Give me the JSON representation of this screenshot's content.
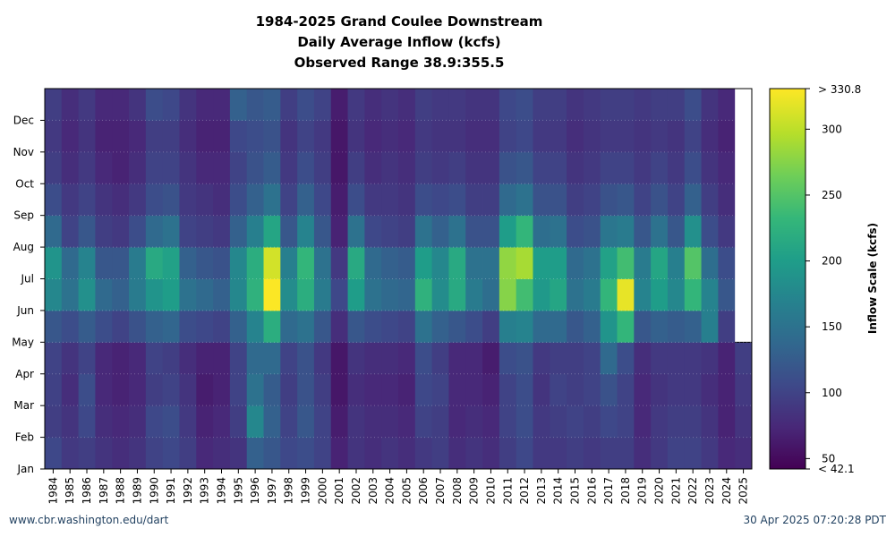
{
  "chart_data": {
    "type": "heatmap",
    "title": [
      "1984-2025 Grand Coulee Downstream",
      "Daily Average Inflow (kcfs)",
      "Observed Range 38.9:355.5"
    ],
    "x": {
      "categories": [
        "1984",
        "1985",
        "1986",
        "1987",
        "1988",
        "1989",
        "1990",
        "1991",
        "1992",
        "1993",
        "1994",
        "1995",
        "1996",
        "1997",
        "1998",
        "1999",
        "2000",
        "2001",
        "2002",
        "2003",
        "2004",
        "2005",
        "2006",
        "2007",
        "2008",
        "2009",
        "2010",
        "2011",
        "2012",
        "2013",
        "2014",
        "2015",
        "2016",
        "2017",
        "2018",
        "2019",
        "2020",
        "2021",
        "2022",
        "2023",
        "2024",
        "2025"
      ]
    },
    "y": {
      "ticks": [
        "Jan",
        "Feb",
        "Mar",
        "Apr",
        "May",
        "Jun",
        "Jul",
        "Aug",
        "Sep",
        "Oct",
        "Nov",
        "Dec"
      ]
    },
    "colorbar": {
      "label": "Inflow Scale (kcfs)",
      "range": [
        42.1,
        330.8
      ],
      "ticks": [
        50,
        100,
        150,
        200,
        250,
        300
      ],
      "max_label": "> 330.8",
      "min_label": "< 42.1",
      "colormap": "viridis"
    },
    "grid": true,
    "no_data_after": "2025-04-30",
    "series": [
      {
        "year": "1984",
        "values": [
          105,
          95,
          98,
          100,
          120,
          175,
          190,
          140,
          110,
          95,
          90,
          95
        ]
      },
      {
        "year": "1985",
        "values": [
          90,
          85,
          80,
          85,
          110,
          150,
          140,
          100,
          90,
          80,
          75,
          80
        ]
      },
      {
        "year": "1986",
        "values": [
          95,
          105,
          110,
          100,
          125,
          185,
          170,
          120,
          100,
          90,
          85,
          90
        ]
      },
      {
        "year": "1987",
        "values": [
          85,
          80,
          75,
          75,
          110,
          140,
          120,
          95,
          85,
          75,
          70,
          75
        ]
      },
      {
        "year": "1988",
        "values": [
          80,
          75,
          70,
          70,
          100,
          130,
          120,
          90,
          80,
          70,
          70,
          75
        ]
      },
      {
        "year": "1989",
        "values": [
          85,
          80,
          75,
          75,
          115,
          160,
          160,
          110,
          90,
          80,
          75,
          85
        ]
      },
      {
        "year": "1990",
        "values": [
          100,
          105,
          95,
          100,
          130,
          190,
          215,
          140,
          110,
          100,
          95,
          110
        ]
      },
      {
        "year": "1991",
        "values": [
          105,
          110,
          100,
          95,
          135,
          200,
          205,
          150,
          115,
          100,
          95,
          105
        ]
      },
      {
        "year": "1992",
        "values": [
          95,
          90,
          85,
          80,
          110,
          150,
          130,
          100,
          90,
          85,
          80,
          85
        ]
      },
      {
        "year": "1993",
        "values": [
          75,
          70,
          65,
          70,
          105,
          140,
          120,
          95,
          85,
          75,
          70,
          75
        ]
      },
      {
        "year": "1994",
        "values": [
          80,
          75,
          70,
          70,
          100,
          130,
          115,
          90,
          80,
          75,
          70,
          75
        ]
      },
      {
        "year": "1995",
        "values": [
          85,
          95,
          100,
          100,
          130,
          175,
          175,
          130,
          110,
          100,
          105,
          130
        ]
      },
      {
        "year": "1996",
        "values": [
          130,
          175,
          150,
          140,
          170,
          225,
          220,
          165,
          130,
          115,
          110,
          120
        ]
      },
      {
        "year": "1997",
        "values": [
          120,
          130,
          125,
          140,
          220,
          330,
          310,
          210,
          150,
          125,
          115,
          125
        ]
      },
      {
        "year": "1998",
        "values": [
          105,
          100,
          95,
          100,
          140,
          180,
          165,
          120,
          100,
          90,
          85,
          95
        ]
      },
      {
        "year": "1999",
        "values": [
          110,
          120,
          115,
          115,
          150,
          220,
          230,
          170,
          130,
          110,
          100,
          110
        ]
      },
      {
        "year": "2000",
        "values": [
          100,
          100,
          95,
          90,
          120,
          160,
          150,
          120,
          105,
          95,
          90,
          100
        ]
      },
      {
        "year": "2001",
        "values": [
          70,
          65,
          60,
          60,
          80,
          105,
          90,
          70,
          65,
          60,
          60,
          65
        ]
      },
      {
        "year": "2002",
        "values": [
          85,
          85,
          80,
          85,
          120,
          200,
          215,
          150,
          110,
          95,
          85,
          90
        ]
      },
      {
        "year": "2003",
        "values": [
          80,
          80,
          75,
          80,
          110,
          150,
          140,
          105,
          90,
          80,
          75,
          80
        ]
      },
      {
        "year": "2004",
        "values": [
          85,
          80,
          75,
          80,
          105,
          140,
          130,
          100,
          90,
          85,
          80,
          85
        ]
      },
      {
        "year": "2005",
        "values": [
          80,
          75,
          70,
          75,
          100,
          135,
          125,
          95,
          85,
          80,
          75,
          80
        ]
      },
      {
        "year": "2006",
        "values": [
          90,
          100,
          105,
          110,
          150,
          225,
          200,
          150,
          110,
          95,
          90,
          95
        ]
      },
      {
        "year": "2007",
        "values": [
          95,
          95,
          100,
          95,
          130,
          180,
          175,
          130,
          105,
          90,
          85,
          90
        ]
      },
      {
        "year": "2008",
        "values": [
          80,
          75,
          75,
          75,
          120,
          215,
          215,
          150,
          110,
          95,
          85,
          90
        ]
      },
      {
        "year": "2009",
        "values": [
          85,
          80,
          75,
          75,
          110,
          160,
          150,
          115,
          95,
          85,
          80,
          85
        ]
      },
      {
        "year": "2010",
        "values": [
          80,
          75,
          70,
          65,
          95,
          145,
          150,
          115,
          95,
          85,
          80,
          85
        ]
      },
      {
        "year": "2011",
        "values": [
          95,
          100,
          100,
          110,
          165,
          275,
          280,
          200,
          140,
          115,
          100,
          105
        ]
      },
      {
        "year": "2012",
        "values": [
          105,
          110,
          110,
          115,
          170,
          240,
          290,
          230,
          150,
          120,
          105,
          110
        ]
      },
      {
        "year": "2013",
        "values": [
          90,
          90,
          85,
          90,
          140,
          195,
          200,
          145,
          115,
          100,
          90,
          95
        ]
      },
      {
        "year": "2014",
        "values": [
          90,
          95,
          100,
          95,
          140,
          210,
          200,
          150,
          115,
          100,
          90,
          95
        ]
      },
      {
        "year": "2015",
        "values": [
          95,
          100,
          95,
          95,
          120,
          150,
          140,
          110,
          95,
          85,
          80,
          85
        ]
      },
      {
        "year": "2016",
        "values": [
          90,
          95,
          100,
          100,
          130,
          160,
          150,
          115,
          100,
          90,
          85,
          90
        ]
      },
      {
        "year": "2017",
        "values": [
          95,
          105,
          115,
          140,
          190,
          230,
          205,
          155,
          115,
          100,
          90,
          95
        ]
      },
      {
        "year": "2018",
        "values": [
          95,
          100,
          100,
          110,
          230,
          320,
          240,
          160,
          120,
          100,
          90,
          95
        ]
      },
      {
        "year": "2019",
        "values": [
          80,
          75,
          75,
          80,
          120,
          170,
          160,
          120,
          100,
          90,
          85,
          90
        ]
      },
      {
        "year": "2020",
        "values": [
          90,
          90,
          85,
          90,
          130,
          200,
          210,
          150,
          115,
          100,
          90,
          95
        ]
      },
      {
        "year": "2021",
        "values": [
          100,
          95,
          90,
          90,
          125,
          175,
          165,
          120,
          100,
          90,
          85,
          95
        ]
      },
      {
        "year": "2022",
        "values": [
          100,
          95,
          90,
          90,
          130,
          230,
          250,
          185,
          130,
          110,
          100,
          110
        ]
      },
      {
        "year": "2023",
        "values": [
          90,
          85,
          80,
          85,
          165,
          170,
          145,
          110,
          95,
          85,
          80,
          85
        ]
      },
      {
        "year": "2024",
        "values": [
          75,
          70,
          70,
          70,
          95,
          120,
          110,
          90,
          80,
          75,
          70,
          75
        ]
      },
      {
        "year": "2025",
        "values": [
          80,
          85,
          90,
          95
        ]
      }
    ]
  },
  "footer": {
    "source": "www.cbr.washington.edu/dart",
    "timestamp": "30 Apr 2025 07:20:28 PDT"
  }
}
